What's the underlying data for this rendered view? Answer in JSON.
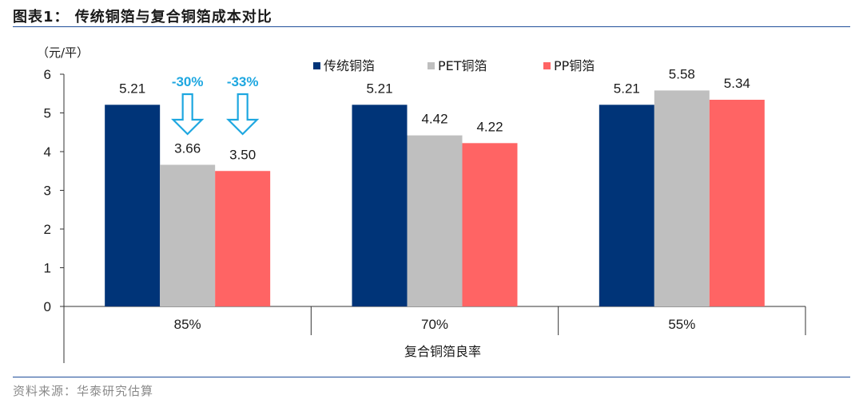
{
  "header": {
    "title": "图表1：  传统铜箔与复合铜箔成本对比"
  },
  "source": "资料来源：华泰研究估算",
  "chart_data": {
    "type": "bar",
    "unit_label": "（元/平）",
    "xlabel": "复合铜箔良率",
    "categories": [
      "85%",
      "70%",
      "55%"
    ],
    "series": [
      {
        "name": "传统铜箔",
        "color": "#003478",
        "values": [
          5.21,
          5.21,
          5.21
        ],
        "labels": [
          "5.21",
          "5.21",
          "5.21"
        ]
      },
      {
        "name": "PET铜箔",
        "color": "#bfbfbf",
        "values": [
          3.66,
          4.42,
          5.58
        ],
        "labels": [
          "3.66",
          "4.42",
          "5.58"
        ]
      },
      {
        "name": "PP铜箔",
        "color": "#ff6464",
        "values": [
          3.5,
          4.22,
          5.34
        ],
        "labels": [
          "3.50",
          "4.22",
          "5.34"
        ]
      }
    ],
    "ylim": [
      0,
      6
    ],
    "yticks": [
      "0",
      "1",
      "2",
      "3",
      "4",
      "5",
      "6"
    ],
    "legend_position": "top",
    "annotations": [
      {
        "text": "-30%",
        "series_index": 1,
        "category_index": 0,
        "color": "#1ea7e0"
      },
      {
        "text": "-33%",
        "series_index": 2,
        "category_index": 0,
        "color": "#1ea7e0"
      }
    ],
    "grid": false
  }
}
